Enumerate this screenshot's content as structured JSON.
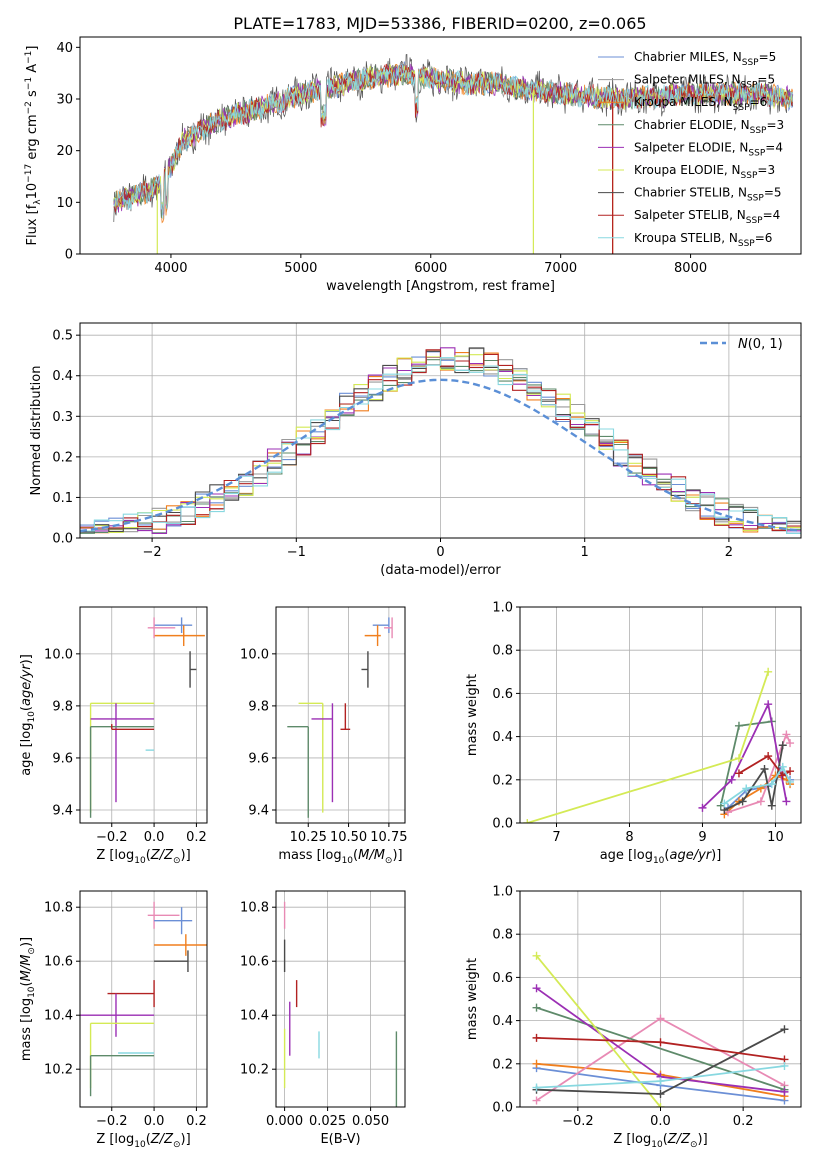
{
  "figure": {
    "title": "PLATE=1783, MJD=53386, FIBERID=0200, z=0.065"
  },
  "series_styles": [
    {
      "name": "Chabrier MILES",
      "color": "#6b8fd6"
    },
    {
      "name": "Salpeter MILES",
      "color": "#9a9a9a"
    },
    {
      "name": "Kroupa MILES",
      "color": "#f07f1e"
    },
    {
      "name": "Chabrier ELODIE",
      "color": "#5e8a6a"
    },
    {
      "name": "Salpeter ELODIE",
      "color": "#9b2fb4"
    },
    {
      "name": "Kroupa ELODIE",
      "color": "#d4ea55"
    },
    {
      "name": "Chabrier STELIB",
      "color": "#4a4a4a"
    },
    {
      "name": "Salpeter STELIB",
      "color": "#b22222"
    },
    {
      "name": "Kroupa STELIB",
      "color": "#88d8e0"
    },
    {
      "name": "pink",
      "color": "#e88ab4"
    }
  ],
  "chart_data": [
    {
      "id": "spectrum",
      "type": "line",
      "xlabel": "wavelength [Angstrom, rest frame]",
      "ylabel": "Flux [f_λ10^-17 erg cm^-2 s^-1 A^-1]",
      "xlim": [
        3300,
        8850
      ],
      "ylim": [
        0,
        42
      ],
      "xticks": [
        4000,
        5000,
        6000,
        7000,
        8000
      ],
      "yticks": [
        0,
        10,
        20,
        30,
        40
      ],
      "grid": false,
      "legend_placement": "top-right",
      "legend": [
        "Chabrier MILES, N_SSP=5",
        "Salpeter MILES, N_SSP=5",
        "Kroupa MILES, N_SSP=6",
        "Chabrier ELODIE, N_SSP=3",
        "Salpeter ELODIE, N_SSP=4",
        "Kroupa ELODIE, N_SSP=3",
        "Chabrier STELIB, N_SSP=5",
        "Salpeter STELIB, N_SSP=4",
        "Kroupa STELIB, N_SSP=6"
      ],
      "continuum": {
        "x": [
          3560,
          3700,
          3900,
          4000,
          4100,
          4300,
          4500,
          4800,
          5000,
          5200,
          5500,
          5800,
          6000,
          6300,
          6500,
          6700,
          7000,
          7500,
          8000,
          8500,
          8790
        ],
        "y": [
          10,
          11,
          13,
          17,
          22,
          25,
          27,
          29,
          31,
          32,
          34,
          35,
          34,
          33,
          33,
          32,
          31,
          30,
          31,
          31,
          30
        ]
      },
      "cutoffs": [
        {
          "series": "Kroupa ELODIE",
          "x": 3895
        },
        {
          "series": "Kroupa ELODIE",
          "x": 6790
        },
        {
          "series": "Kroupa MILES",
          "x": 7400
        },
        {
          "series": "Salpeter STELIB",
          "x": 7400
        }
      ]
    },
    {
      "id": "residual-histogram",
      "type": "histogram",
      "xlabel": "(data-model)/error",
      "ylabel": "Normed distribution",
      "xlim": [
        -2.5,
        2.5
      ],
      "ylim": [
        0,
        0.53
      ],
      "xticks": [
        -2,
        -1,
        0,
        1,
        2
      ],
      "yticks": [
        0.0,
        0.1,
        0.2,
        0.3,
        0.4,
        0.5
      ],
      "grid": true,
      "legend_placement": "top-right",
      "bin_width": 0.1,
      "bin_start": -2.5,
      "gaussian_label": "N(0,1)",
      "gaussian": {
        "mean": 0,
        "sigma": 1,
        "scale": 0.39
      }
    },
    {
      "id": "age-vs-Z",
      "type": "errorbar",
      "xlabel": "Z [log10(Z/Z_sun)]",
      "ylabel": "age [log10(age/yr)]",
      "xlim": [
        -0.35,
        0.25
      ],
      "ylim": [
        9.35,
        10.18
      ],
      "xticks": [
        -0.2,
        0.0,
        0.2
      ],
      "yticks": [
        9.4,
        9.6,
        9.8,
        10.0
      ],
      "grid": true,
      "points": [
        {
          "series": "Chabrier MILES",
          "x": 0.13,
          "xerr": [
            0.13,
            0.05
          ],
          "y": 10.11,
          "yerr": [
            0.03,
            0.03
          ]
        },
        {
          "series": "Kroupa MILES",
          "x": 0.14,
          "xerr": [
            0.14,
            0.1
          ],
          "y": 10.07,
          "yerr": [
            0.04,
            0.04
          ]
        },
        {
          "series": "pink",
          "x": 0.0,
          "xerr": [
            0.03,
            0.1
          ],
          "y": 10.1,
          "yerr": [
            0.04,
            0.04
          ]
        },
        {
          "series": "Chabrier STELIB",
          "x": 0.17,
          "xerr": [
            0.0,
            0.03
          ],
          "y": 9.94,
          "yerr": [
            0.07,
            0.07
          ]
        },
        {
          "series": "Kroupa ELODIE",
          "x": -0.3,
          "xerr": [
            0.0,
            0.3
          ],
          "y": 9.81,
          "yerr": [
            0.42,
            0.0
          ]
        },
        {
          "series": "Salpeter ELODIE",
          "x": -0.18,
          "xerr": [
            0.12,
            0.18
          ],
          "y": 9.75,
          "yerr": [
            0.32,
            0.06
          ]
        },
        {
          "series": "Chabrier ELODIE",
          "x": -0.3,
          "xerr": [
            0.0,
            0.3
          ],
          "y": 9.72,
          "yerr": [
            0.35,
            0.0
          ]
        },
        {
          "series": "Salpeter STELIB",
          "x": -0.2,
          "xerr": [
            0.0,
            0.2
          ],
          "y": 9.71,
          "yerr": [
            0.0,
            0.02
          ]
        },
        {
          "series": "Kroupa STELIB",
          "x": -0.02,
          "xerr": [
            0.02,
            0.02
          ],
          "y": 9.63,
          "yerr": [
            0.0,
            0.0
          ]
        }
      ]
    },
    {
      "id": "age-vs-mass",
      "type": "errorbar",
      "xlabel": "mass [log10(M/M_sun)]",
      "ylabel": "",
      "xlim": [
        10.05,
        10.85
      ],
      "ylim": [
        9.35,
        10.18
      ],
      "xticks": [
        10.25,
        10.5,
        10.75
      ],
      "yticks": [
        9.4,
        9.6,
        9.8,
        10.0
      ],
      "grid": true,
      "points": [
        {
          "series": "Chabrier MILES",
          "x": 10.75,
          "xerr": [
            0.1,
            0.0
          ],
          "y": 10.11,
          "yerr": [
            0.03,
            0.03
          ]
        },
        {
          "series": "pink",
          "x": 10.77,
          "xerr": [
            0.05,
            0.0
          ],
          "y": 10.1,
          "yerr": [
            0.04,
            0.04
          ]
        },
        {
          "series": "Kroupa MILES",
          "x": 10.68,
          "xerr": [
            0.08,
            0.02
          ],
          "y": 10.07,
          "yerr": [
            0.04,
            0.04
          ]
        },
        {
          "series": "Chabrier STELIB",
          "x": 10.62,
          "xerr": [
            0.04,
            0.0
          ],
          "y": 9.94,
          "yerr": [
            0.07,
            0.07
          ]
        },
        {
          "series": "Kroupa ELODIE",
          "x": 10.34,
          "xerr": [
            0.15,
            0.0
          ],
          "y": 9.81,
          "yerr": [
            0.42,
            0.0
          ]
        },
        {
          "series": "Salpeter ELODIE",
          "x": 10.4,
          "xerr": [
            0.13,
            0.0
          ],
          "y": 9.75,
          "yerr": [
            0.32,
            0.06
          ]
        },
        {
          "series": "Chabrier ELODIE",
          "x": 10.25,
          "xerr": [
            0.13,
            0.0
          ],
          "y": 9.72,
          "yerr": [
            0.35,
            0.0
          ]
        },
        {
          "series": "Salpeter STELIB",
          "x": 10.48,
          "xerr": [
            0.03,
            0.03
          ],
          "y": 9.71,
          "yerr": [
            0.0,
            0.1
          ]
        },
        {
          "series": "Kroupa STELIB",
          "x": 10.26,
          "xerr": [
            0.0,
            0.0
          ],
          "y": 9.63,
          "yerr": [
            0.0,
            0.0
          ]
        }
      ]
    },
    {
      "id": "weight-vs-age",
      "type": "line",
      "xlabel": "age [log10(age/yr)]",
      "ylabel": "mass weight",
      "xlim": [
        6.5,
        10.35
      ],
      "ylim": [
        0,
        1
      ],
      "xticks": [
        7,
        8,
        9,
        10
      ],
      "yticks": [
        0.0,
        0.2,
        0.4,
        0.6,
        0.8,
        1.0
      ],
      "grid": true,
      "series": [
        {
          "name": "Chabrier MILES",
          "x": [
            9.35,
            9.6,
            9.9,
            10.1,
            10.2
          ],
          "y": [
            0.07,
            0.15,
            0.17,
            0.23,
            0.2
          ]
        },
        {
          "name": "Kroupa MILES",
          "x": [
            9.3,
            9.5,
            9.8,
            10.0,
            10.15,
            10.2
          ],
          "y": [
            0.04,
            0.1,
            0.16,
            0.22,
            0.2,
            0.18
          ]
        },
        {
          "name": "pink",
          "x": [
            9.35,
            9.8,
            10.15,
            10.2
          ],
          "y": [
            0.05,
            0.1,
            0.41,
            0.37
          ]
        },
        {
          "name": "Chabrier ELODIE",
          "x": [
            9.25,
            9.5,
            9.95
          ],
          "y": [
            0.08,
            0.45,
            0.47
          ]
        },
        {
          "name": "Salpeter ELODIE",
          "x": [
            9.0,
            9.4,
            9.9,
            10.15
          ],
          "y": [
            0.07,
            0.2,
            0.55,
            0.1
          ]
        },
        {
          "name": "Kroupa ELODIE",
          "x": [
            6.6,
            9.5,
            9.9
          ],
          "y": [
            0.0,
            0.3,
            0.7
          ]
        },
        {
          "name": "Chabrier STELIB",
          "x": [
            9.3,
            9.55,
            9.85,
            9.95,
            10.1
          ],
          "y": [
            0.06,
            0.1,
            0.25,
            0.08,
            0.36
          ]
        },
        {
          "name": "Salpeter STELIB",
          "x": [
            9.5,
            9.9,
            10.1,
            10.2
          ],
          "y": [
            0.23,
            0.31,
            0.22,
            0.24
          ]
        },
        {
          "name": "Kroupa STELIB",
          "x": [
            9.3,
            9.6,
            9.95,
            10.1,
            10.2
          ],
          "y": [
            0.09,
            0.16,
            0.18,
            0.26,
            0.19
          ]
        }
      ]
    },
    {
      "id": "mass-vs-Z",
      "type": "errorbar",
      "xlabel": "Z [log10(Z/Z_sun)]",
      "ylabel": "mass [log10(M/M_sun)]",
      "xlim": [
        -0.35,
        0.25
      ],
      "ylim": [
        10.06,
        10.86
      ],
      "xticks": [
        -0.2,
        0.0,
        0.2
      ],
      "yticks": [
        10.2,
        10.4,
        10.6,
        10.8
      ],
      "grid": true,
      "points": [
        {
          "series": "pink",
          "x": 0.0,
          "xerr": [
            0.03,
            0.12
          ],
          "y": 10.77,
          "yerr": [
            0.05,
            0.05
          ]
        },
        {
          "series": "Chabrier MILES",
          "x": 0.13,
          "xerr": [
            0.13,
            0.05
          ],
          "y": 10.75,
          "yerr": [
            0.05,
            0.05
          ]
        },
        {
          "series": "Kroupa MILES",
          "x": 0.15,
          "xerr": [
            0.15,
            0.1
          ],
          "y": 10.66,
          "yerr": [
            0.04,
            0.04
          ]
        },
        {
          "series": "Chabrier STELIB",
          "x": 0.16,
          "xerr": [
            0.16,
            0.0
          ],
          "y": 10.6,
          "yerr": [
            0.04,
            0.04
          ]
        },
        {
          "series": "Salpeter STELIB",
          "x": 0.0,
          "xerr": [
            0.22,
            0.0
          ],
          "y": 10.48,
          "yerr": [
            0.05,
            0.05
          ]
        },
        {
          "series": "Salpeter ELODIE",
          "x": -0.18,
          "xerr": [
            0.17,
            0.18
          ],
          "y": 10.4,
          "yerr": [
            0.08,
            0.08
          ]
        },
        {
          "series": "Kroupa ELODIE",
          "x": -0.3,
          "xerr": [
            0.0,
            0.3
          ],
          "y": 10.37,
          "yerr": [
            0.24,
            0.0
          ]
        },
        {
          "series": "Kroupa STELIB",
          "x": 0.0,
          "xerr": [
            0.17,
            0.0
          ],
          "y": 10.26,
          "yerr": [
            0.0,
            0.0
          ]
        },
        {
          "series": "Chabrier ELODIE",
          "x": -0.3,
          "xerr": [
            0.0,
            0.3
          ],
          "y": 10.25,
          "yerr": [
            0.15,
            0.0
          ]
        }
      ]
    },
    {
      "id": "mass-vs-ebv",
      "type": "errorbar",
      "xlabel": "E(B-V)",
      "ylabel": "",
      "xlim": [
        -0.005,
        0.07
      ],
      "ylim": [
        10.06,
        10.86
      ],
      "xticks": [
        0.0,
        0.025,
        0.05
      ],
      "xticklabels": [
        "0.000",
        "0.025",
        "0.050"
      ],
      "yticks": [
        10.2,
        10.4,
        10.6,
        10.8
      ],
      "grid": true,
      "points": [
        {
          "series": "pink",
          "x": 0.0,
          "xerr": [
            0.0,
            0.0
          ],
          "y": 10.77,
          "yerr": [
            0.05,
            0.05
          ]
        },
        {
          "series": "Chabrier STELIB",
          "x": 0.0,
          "xerr": [
            0.0,
            0.0
          ],
          "y": 10.62,
          "yerr": [
            0.06,
            0.06
          ]
        },
        {
          "series": "Salpeter STELIB",
          "x": 0.007,
          "xerr": [
            0.0,
            0.0
          ],
          "y": 10.48,
          "yerr": [
            0.05,
            0.05
          ]
        },
        {
          "series": "Salpeter ELODIE",
          "x": 0.003,
          "xerr": [
            0.0,
            0.0
          ],
          "y": 10.35,
          "yerr": [
            0.1,
            0.1
          ]
        },
        {
          "series": "Kroupa STELIB",
          "x": 0.02,
          "xerr": [
            0.0,
            0.0
          ],
          "y": 10.29,
          "yerr": [
            0.05,
            0.05
          ]
        },
        {
          "series": "Kroupa ELODIE",
          "x": 0.0,
          "xerr": [
            0.0,
            0.0
          ],
          "y": 10.24,
          "yerr": [
            0.11,
            0.11
          ]
        },
        {
          "series": "Chabrier ELODIE",
          "x": 0.065,
          "xerr": [
            0.0,
            0.0
          ],
          "y": 10.2,
          "yerr": [
            0.14,
            0.14
          ]
        }
      ]
    },
    {
      "id": "weight-vs-Z",
      "type": "line",
      "xlabel": "Z [log10(Z/Z_sun)]",
      "ylabel": "mass weight",
      "xlim": [
        -0.34,
        0.34
      ],
      "ylim": [
        0,
        1
      ],
      "xticks": [
        -0.2,
        0.0,
        0.2
      ],
      "yticks": [
        0.0,
        0.2,
        0.4,
        0.6,
        0.8,
        1.0
      ],
      "grid": true,
      "series": [
        {
          "name": "Chabrier MILES",
          "x": [
            -0.3,
            0.0,
            0.3
          ],
          "y": [
            0.18,
            0.1,
            0.03
          ]
        },
        {
          "name": "Kroupa MILES",
          "x": [
            -0.3,
            0.0,
            0.3
          ],
          "y": [
            0.2,
            0.15,
            0.05
          ]
        },
        {
          "name": "pink",
          "x": [
            -0.3,
            0.0,
            0.3
          ],
          "y": [
            0.03,
            0.41,
            0.1
          ]
        },
        {
          "name": "Chabrier ELODIE",
          "x": [
            -0.3,
            0.3
          ],
          "y": [
            0.46,
            0.08
          ]
        },
        {
          "name": "Salpeter ELODIE",
          "x": [
            -0.3,
            0.0,
            0.3
          ],
          "y": [
            0.55,
            0.14,
            0.07
          ]
        },
        {
          "name": "Kroupa ELODIE",
          "x": [
            -0.3,
            0.0
          ],
          "y": [
            0.7,
            0.0
          ]
        },
        {
          "name": "Chabrier STELIB",
          "x": [
            -0.3,
            0.0,
            0.3
          ],
          "y": [
            0.08,
            0.06,
            0.36
          ]
        },
        {
          "name": "Salpeter STELIB",
          "x": [
            -0.3,
            0.0,
            0.3
          ],
          "y": [
            0.32,
            0.3,
            0.22
          ]
        },
        {
          "name": "Kroupa STELIB",
          "x": [
            -0.3,
            0.0,
            0.3
          ],
          "y": [
            0.09,
            0.12,
            0.19
          ]
        }
      ]
    }
  ]
}
